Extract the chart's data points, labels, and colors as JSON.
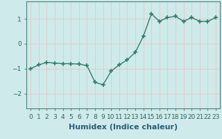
{
  "x": [
    0,
    1,
    2,
    3,
    4,
    5,
    6,
    7,
    8,
    9,
    10,
    11,
    12,
    13,
    14,
    15,
    16,
    17,
    18,
    19,
    20,
    21,
    22,
    23
  ],
  "y": [
    -1.0,
    -0.85,
    -0.75,
    -0.78,
    -0.8,
    -0.8,
    -0.82,
    -0.88,
    -1.55,
    -1.65,
    -1.1,
    -0.85,
    -0.65,
    -0.35,
    0.3,
    1.2,
    0.9,
    1.05,
    1.1,
    0.9,
    1.05,
    0.9,
    0.9,
    1.05
  ],
  "line_color": "#2e7d6e",
  "marker": "+",
  "marker_size": 4,
  "background_color": "#ceeaea",
  "grid_color": "#e8c8c8",
  "xlabel": "Humidex (Indice chaleur)",
  "xlim": [
    -0.5,
    23.5
  ],
  "ylim": [
    -2.6,
    1.7
  ],
  "yticks": [
    -2,
    -1,
    0,
    1
  ],
  "axis_color": "#4d7d7d",
  "tick_color": "#2e6060",
  "tick_fontsize": 6.5,
  "xlabel_fontsize": 8,
  "xlabel_color": "#2e5c7a",
  "linewidth": 1.0,
  "marker_linewidth": 1.2
}
